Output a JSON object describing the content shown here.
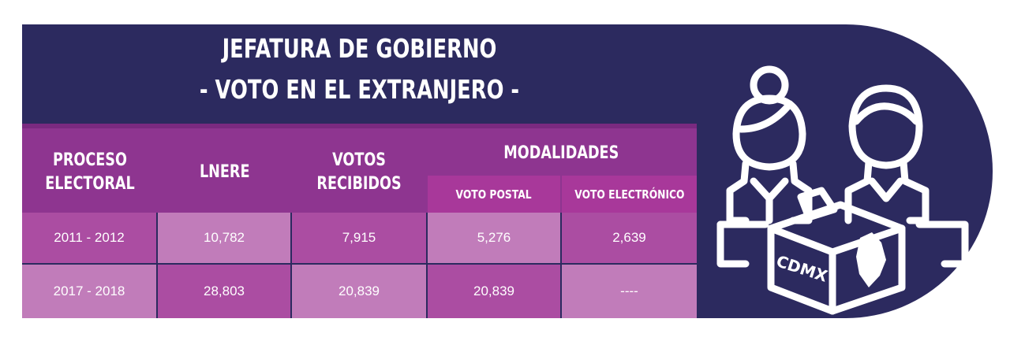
{
  "title": {
    "line1": "JEFATURA DE GOBIERNO",
    "line2": "- VOTO EN EL EXTRANJERO -"
  },
  "table": {
    "headers": {
      "proceso_l1": "PROCESO",
      "proceso_l2": "ELECTORAL",
      "lnere": "LNERE",
      "votos_l1": "VOTOS",
      "votos_l2": "RECIBIDOS",
      "modalidades": "MODALIDADES",
      "voto_postal": "VOTO POSTAL",
      "voto_electronico": "VOTO ELECTRÓNICO"
    },
    "rows": [
      {
        "proceso": "2011 - 2012",
        "lnere": "10,782",
        "votos": "7,915",
        "postal": "5,276",
        "electronico": "2,639"
      },
      {
        "proceso": "2017 - 2018",
        "lnere": "28,803",
        "votos": "20,839",
        "postal": "20,839",
        "electronico": "----"
      }
    ]
  },
  "illustration": {
    "icon": "voters-ballot-box-icon",
    "box_label": "CDMX"
  },
  "colors": {
    "panel": "#2c2a5f",
    "header": "#8e3590",
    "sub_header": "#a8389a",
    "cell_dark": "#ab4da2",
    "cell_light": "#c17cba"
  }
}
